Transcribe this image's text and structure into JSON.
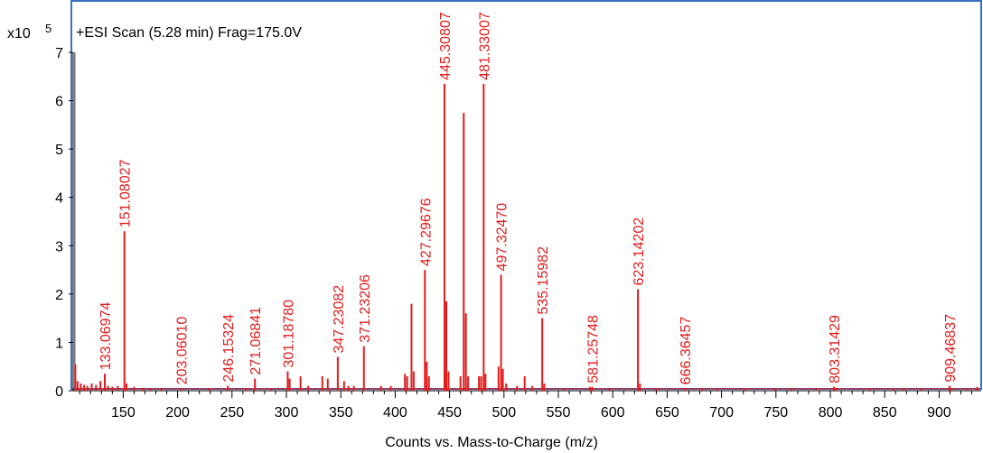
{
  "chart_data": {
    "type": "bar",
    "title": "+ESI Scan (5.28 min) Frag=175.0V",
    "xlabel": "Counts vs. Mass-to-Charge (m/z)",
    "ylabel": "",
    "y_multiplier_base": "x10",
    "y_multiplier_exp": "5",
    "xlim": [
      104,
      937
    ],
    "ylim": [
      0,
      7.15
    ],
    "x_ticks": [
      150,
      200,
      250,
      300,
      350,
      400,
      450,
      500,
      550,
      600,
      650,
      700,
      750,
      800,
      850,
      900
    ],
    "y_ticks": [
      0,
      1,
      2,
      3,
      4,
      5,
      6,
      7
    ],
    "colors": {
      "peak": "#e41b1b",
      "frame": "#3a6fc4",
      "axis": "#000000"
    },
    "labeled_peaks": [
      {
        "x": 133.06974,
        "y": 0.35,
        "label": "133.06974"
      },
      {
        "x": 151.08027,
        "y": 3.3,
        "label": "151.08027"
      },
      {
        "x": 203.0601,
        "y": 0.05,
        "label": "203.06010"
      },
      {
        "x": 246.15324,
        "y": 0.1,
        "label": "246.15324"
      },
      {
        "x": 271.06841,
        "y": 0.25,
        "label": "271.06841"
      },
      {
        "x": 301.1878,
        "y": 0.4,
        "label": "301.18780"
      },
      {
        "x": 347.23082,
        "y": 0.7,
        "label": "347.23082"
      },
      {
        "x": 371.23206,
        "y": 0.92,
        "label": "371.23206"
      },
      {
        "x": 427.29676,
        "y": 2.5,
        "label": "427.29676"
      },
      {
        "x": 445.30807,
        "y": 6.35,
        "label": "445.30807"
      },
      {
        "x": 481.33007,
        "y": 6.35,
        "label": "481.33007"
      },
      {
        "x": 497.3247,
        "y": 2.4,
        "label": "497.32470"
      },
      {
        "x": 535.15982,
        "y": 1.5,
        "label": "535.15982"
      },
      {
        "x": 581.25748,
        "y": 0.08,
        "label": "581.25748"
      },
      {
        "x": 623.14202,
        "y": 2.1,
        "label": "623.14202"
      },
      {
        "x": 666.36457,
        "y": 0.05,
        "label": "666.36457"
      },
      {
        "x": 803.31429,
        "y": 0.08,
        "label": "803.31429"
      },
      {
        "x": 909.46837,
        "y": 0.1,
        "label": "909.46837"
      }
    ],
    "unlabeled_peaks": [
      {
        "x": 106,
        "y": 0.55
      },
      {
        "x": 108,
        "y": 0.2
      },
      {
        "x": 111,
        "y": 0.15
      },
      {
        "x": 114,
        "y": 0.12
      },
      {
        "x": 117,
        "y": 0.1
      },
      {
        "x": 121,
        "y": 0.15
      },
      {
        "x": 125,
        "y": 0.12
      },
      {
        "x": 129,
        "y": 0.2
      },
      {
        "x": 136,
        "y": 0.1
      },
      {
        "x": 140,
        "y": 0.08
      },
      {
        "x": 145,
        "y": 0.1
      },
      {
        "x": 153,
        "y": 0.15
      },
      {
        "x": 160,
        "y": 0.08
      },
      {
        "x": 168,
        "y": 0.06
      },
      {
        "x": 175,
        "y": 0.05
      },
      {
        "x": 185,
        "y": 0.05
      },
      {
        "x": 229,
        "y": 0.05
      },
      {
        "x": 263,
        "y": 0.05
      },
      {
        "x": 286,
        "y": 0.05
      },
      {
        "x": 303,
        "y": 0.25
      },
      {
        "x": 313,
        "y": 0.3
      },
      {
        "x": 320,
        "y": 0.1
      },
      {
        "x": 333,
        "y": 0.3
      },
      {
        "x": 338,
        "y": 0.25
      },
      {
        "x": 353,
        "y": 0.2
      },
      {
        "x": 357,
        "y": 0.1
      },
      {
        "x": 362,
        "y": 0.1
      },
      {
        "x": 387,
        "y": 0.1
      },
      {
        "x": 396,
        "y": 0.1
      },
      {
        "x": 409,
        "y": 0.35
      },
      {
        "x": 411,
        "y": 0.3
      },
      {
        "x": 415,
        "y": 1.8
      },
      {
        "x": 417,
        "y": 0.4
      },
      {
        "x": 429,
        "y": 0.6
      },
      {
        "x": 431,
        "y": 0.3
      },
      {
        "x": 447,
        "y": 1.85
      },
      {
        "x": 449,
        "y": 0.4
      },
      {
        "x": 460,
        "y": 0.3
      },
      {
        "x": 463,
        "y": 5.75
      },
      {
        "x": 465,
        "y": 1.6
      },
      {
        "x": 467,
        "y": 0.3
      },
      {
        "x": 477,
        "y": 0.3
      },
      {
        "x": 479,
        "y": 0.3
      },
      {
        "x": 483,
        "y": 0.35
      },
      {
        "x": 495,
        "y": 0.5
      },
      {
        "x": 499,
        "y": 0.45
      },
      {
        "x": 502,
        "y": 0.15
      },
      {
        "x": 512,
        "y": 0.1
      },
      {
        "x": 519,
        "y": 0.3
      },
      {
        "x": 526,
        "y": 0.1
      },
      {
        "x": 537,
        "y": 0.15
      },
      {
        "x": 555,
        "y": 0.05
      },
      {
        "x": 579,
        "y": 0.08
      },
      {
        "x": 597,
        "y": 0.05
      },
      {
        "x": 625,
        "y": 0.15
      },
      {
        "x": 640,
        "y": 0.05
      },
      {
        "x": 682,
        "y": 0.05
      },
      {
        "x": 696,
        "y": 0.05
      },
      {
        "x": 722,
        "y": 0.05
      },
      {
        "x": 749,
        "y": 0.05
      },
      {
        "x": 764,
        "y": 0.05
      },
      {
        "x": 787,
        "y": 0.05
      },
      {
        "x": 805,
        "y": 0.06
      },
      {
        "x": 836,
        "y": 0.05
      },
      {
        "x": 858,
        "y": 0.05
      },
      {
        "x": 867,
        "y": 0.05
      },
      {
        "x": 884,
        "y": 0.05
      },
      {
        "x": 911,
        "y": 0.06
      },
      {
        "x": 926,
        "y": 0.05
      },
      {
        "x": 935,
        "y": 0.08
      }
    ],
    "reference_line": {
      "x": 105.5,
      "y": 7.0
    }
  }
}
